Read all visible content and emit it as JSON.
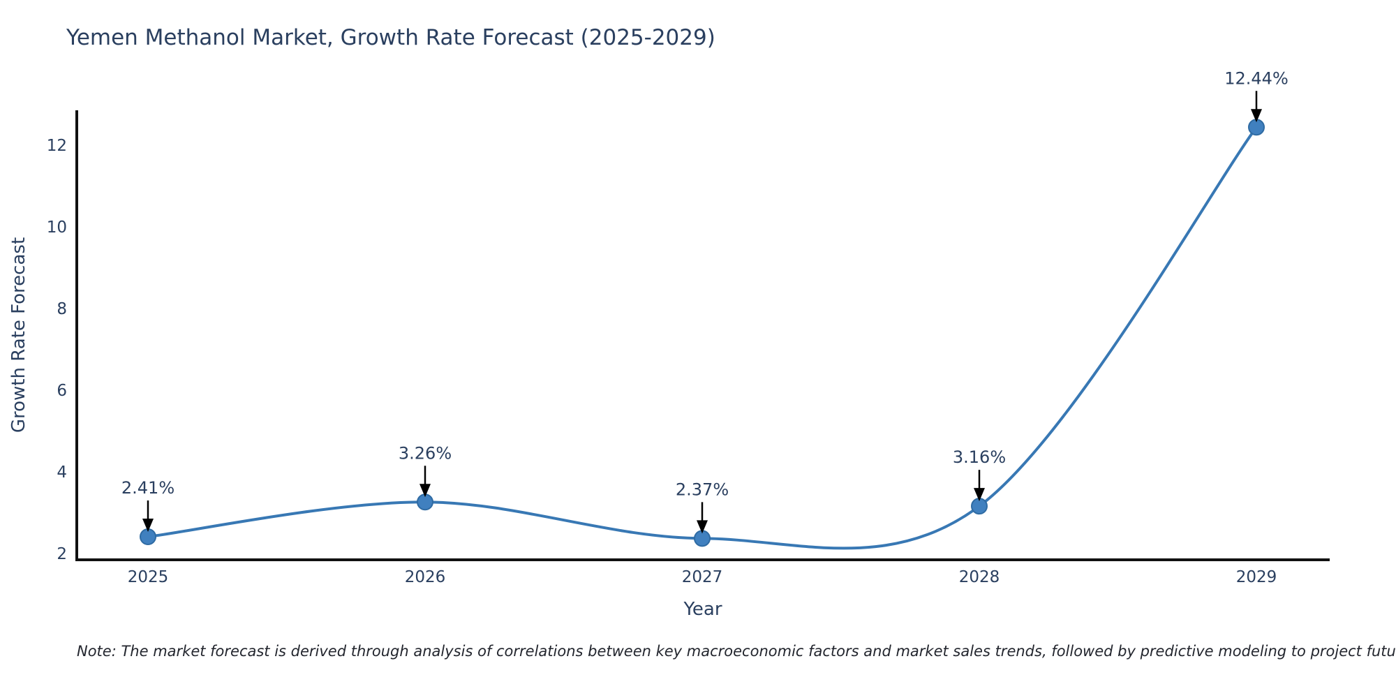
{
  "page": {
    "background": "#ffffff"
  },
  "chart_data": {
    "type": "line",
    "title": "Yemen Methanol Market, Growth Rate Forecast (2025-2029)",
    "xlabel": "Year",
    "ylabel": "Growth Rate Forecast",
    "categories": [
      "2025",
      "2026",
      "2027",
      "2028",
      "2029"
    ],
    "series": [
      {
        "name": "Growth Rate Forecast",
        "values": [
          2.41,
          3.26,
          2.37,
          3.16,
          12.44
        ]
      }
    ],
    "point_labels": [
      "2.41%",
      "3.26%",
      "2.37%",
      "3.16%",
      "12.44%"
    ],
    "yticks": [
      2,
      4,
      6,
      8,
      10,
      12
    ],
    "ylim": [
      1.85,
      13.0
    ],
    "line_shape": "spline",
    "grid": false,
    "legend_position": "none",
    "colors": {
      "line": "#3878b4",
      "marker_fill": "#4080bf",
      "marker_edge": "#2f6ba3",
      "axis": "#111111",
      "text": "#2a3f5f",
      "arrow": "#000000",
      "note_text": "#23262e"
    },
    "note": "Note: The market forecast is derived through analysis of correlations between key macroeconomic factors and market sales trends, followed by predictive modeling to project future sales."
  }
}
